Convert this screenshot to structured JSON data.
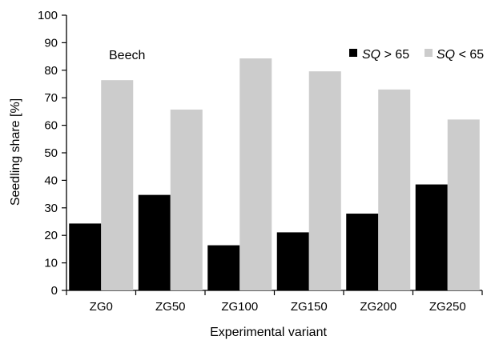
{
  "chart_data": {
    "type": "bar",
    "title": "",
    "annotation": "Beech",
    "xlabel": "Experimental variant",
    "ylabel": "Seedling share [%]",
    "ylim": [
      0,
      100
    ],
    "yticks": [
      "0",
      "10",
      "20",
      "30",
      "40",
      "50",
      "60",
      "70",
      "80",
      "90",
      "100"
    ],
    "categories": [
      "ZG0",
      "ZG50",
      "ZG100",
      "ZG150",
      "ZG200",
      "ZG250"
    ],
    "series": [
      {
        "label_var": "SQ",
        "label_rest": " > 65",
        "color": "#000000",
        "values": [
          24.3,
          34.7,
          16.4,
          21.1,
          27.9,
          38.5
        ]
      },
      {
        "label_var": "SQ",
        "label_rest": " < 65",
        "color": "#cccccc",
        "values": [
          76.4,
          65.7,
          84.3,
          79.6,
          73.0,
          62.1
        ]
      }
    ],
    "legend": "top-right",
    "grid": false
  }
}
